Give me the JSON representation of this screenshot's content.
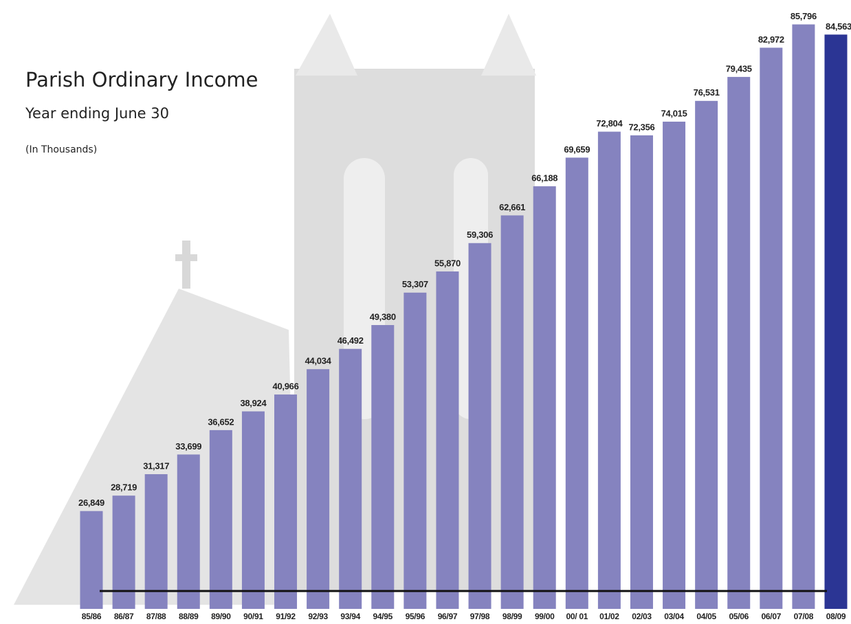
{
  "chart_data": {
    "type": "bar",
    "title": "Parish Ordinary Income",
    "subtitle": "Year ending June 30",
    "note": "(In Thousands)",
    "categories": [
      "85/86",
      "86/87",
      "87/88",
      "88/89",
      "89/90",
      "90/91",
      "91/92",
      "92/93",
      "93/94",
      "94/95",
      "95/96",
      "96/97",
      "97/98",
      "98/99",
      "99/00",
      "00/ 01",
      "01/02",
      "02/03",
      "03/04",
      "04/05",
      "05/06",
      "06/07",
      "07/08",
      "08/09"
    ],
    "values": [
      26849,
      28719,
      31317,
      33699,
      36652,
      38924,
      40966,
      44034,
      46492,
      49380,
      53307,
      55870,
      59306,
      62661,
      66188,
      69659,
      72804,
      72356,
      74015,
      76531,
      79435,
      82972,
      85796,
      84563
    ],
    "value_labels": [
      "26,849",
      "28,719",
      "31,317",
      "33,699",
      "36,652",
      "38,924",
      "40,966",
      "44,034",
      "46,492",
      "49,380",
      "53,307",
      "55,870",
      "59,306",
      "62,661",
      "66,188",
      "69,659",
      "72,804",
      "72,356",
      "74,015",
      "76,531",
      "79,435",
      "82,972",
      "85,796",
      "84,563"
    ],
    "color": "#8583bf",
    "highlight_color": "#2b3594",
    "highlight_index": 23,
    "ylim": [
      15000,
      90000
    ]
  }
}
